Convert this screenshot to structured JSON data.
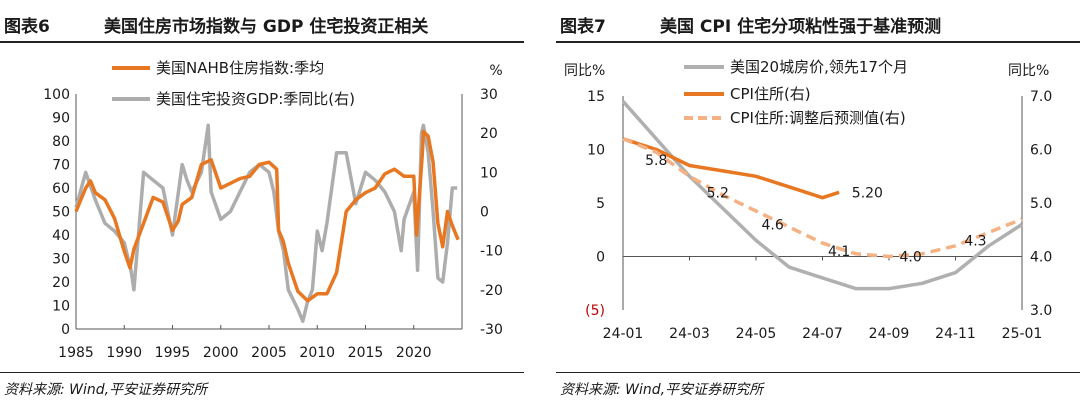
{
  "left": {
    "fig_label": "图表6",
    "title": "美国住房市场指数与 GDP 住宅投资正相关",
    "source": "资料来源: Wind,平安证券研究所"
  },
  "right": {
    "fig_label": "图表7",
    "title": "美国 CPI 住宅分项粘性强于基准预测",
    "source": "资料来源: Wind,平安证券研究所"
  },
  "chart_data": [
    {
      "type": "line",
      "title": "美国住房市场指数与 GDP 住宅投资正相关",
      "x_ticks": [
        "1985",
        "1990",
        "1995",
        "2000",
        "2005",
        "2010",
        "2015",
        "2020"
      ],
      "xlim": [
        1985,
        2025
      ],
      "y_left": {
        "label": "",
        "ticks": [
          "0",
          "10",
          "20",
          "30",
          "40",
          "50",
          "60",
          "70",
          "80",
          "90",
          "100"
        ],
        "lim": [
          0,
          100
        ]
      },
      "y_right": {
        "label": "%",
        "ticks": [
          "-30",
          "-20",
          "-10",
          "0",
          "10",
          "20",
          "30"
        ],
        "lim": [
          -30,
          30
        ]
      },
      "series": [
        {
          "name": "美国NAHB住房指数:季均",
          "axis": "left",
          "color": "#E87722",
          "x": [
            1985,
            1986,
            1986.5,
            1987,
            1988,
            1989,
            1990,
            1990.6,
            1991,
            1992,
            1993,
            1994,
            1995,
            1995.6,
            1996,
            1997,
            1998,
            1999,
            2000,
            2001,
            2002,
            2003,
            2004,
            2005,
            2005.8,
            2006,
            2006.5,
            2007,
            2008,
            2009,
            2010,
            2011,
            2012,
            2013,
            2014,
            2015,
            2016,
            2017,
            2018,
            2019,
            2020,
            2020.3,
            2020.9,
            2021,
            2021.5,
            2022,
            2022.5,
            2023,
            2023.5,
            2024,
            2024.6
          ],
          "y": [
            50,
            60,
            63,
            58,
            55,
            47,
            33,
            26,
            34,
            45,
            56,
            54,
            42,
            46,
            53,
            56,
            70,
            72,
            60,
            62,
            64,
            65,
            70,
            71,
            68,
            42,
            37,
            28,
            16,
            12,
            15,
            15,
            24,
            50,
            55,
            58,
            60,
            66,
            68,
            65,
            65,
            40,
            75,
            84,
            82,
            71,
            45,
            35,
            50,
            44,
            38
          ],
          "yunit": "index"
        },
        {
          "name": "美国住宅投资GDP:季同比(右)",
          "axis": "right",
          "color": "#ADADAD",
          "x": [
            1985,
            1986,
            1987,
            1988,
            1989,
            1990,
            1990.7,
            1991,
            1992,
            1993,
            1994,
            1995,
            1996,
            1996.5,
            1997,
            1998,
            1998.7,
            1999,
            2000,
            2001,
            2002,
            2003,
            2004,
            2005,
            2005.5,
            2006,
            2006.5,
            2007,
            2008,
            2008.5,
            2009,
            2009.5,
            2010,
            2010.5,
            2011,
            2012,
            2013,
            2014,
            2015,
            2016,
            2017,
            2018,
            2018.7,
            2019,
            2020,
            2020.4,
            2020.8,
            2021,
            2021.5,
            2022,
            2022.5,
            2023,
            2023.5,
            2024,
            2024.5
          ],
          "y": [
            1,
            10,
            3,
            -3,
            -5,
            -8,
            -15,
            -20,
            10,
            8,
            6,
            -6,
            12,
            8,
            5,
            10,
            22,
            5,
            -2,
            0,
            5,
            10,
            12,
            10,
            5,
            -5,
            -10,
            -20,
            -25,
            -28,
            -23,
            -20,
            -5,
            -10,
            -3,
            15,
            15,
            2,
            10,
            8,
            5,
            0,
            -10,
            -2,
            5,
            -15,
            20,
            22,
            15,
            0,
            -17,
            -18,
            -8,
            6,
            6
          ],
          "yunit": "%"
        }
      ]
    },
    {
      "type": "line",
      "title": "美国 CPI 住宅分项粘性强于基准预测",
      "x_ticks": [
        "24-01",
        "24-03",
        "24-05",
        "24-07",
        "24-09",
        "24-11",
        "25-01"
      ],
      "xlim": [
        "24-01",
        "25-01"
      ],
      "y_left": {
        "label": "同比%",
        "ticks": [
          "(5)",
          "0",
          "5",
          "10",
          "15"
        ],
        "lim": [
          -5,
          15
        ]
      },
      "y_right": {
        "label": "同比%",
        "ticks": [
          "3.0",
          "4.0",
          "5.0",
          "6.0",
          "7.0"
        ],
        "lim": [
          3.0,
          7.0
        ]
      },
      "series": [
        {
          "name": "美国20城房价,领先17个月",
          "axis": "left",
          "color": "#B0B0B0",
          "x": [
            0,
            1,
            2,
            3,
            4,
            5,
            6,
            7,
            8,
            9,
            10,
            11,
            12
          ],
          "y": [
            14.5,
            11.0,
            7.5,
            4.5,
            1.5,
            -1.0,
            -2.0,
            -3.0,
            -3.0,
            -2.5,
            -1.5,
            1.0,
            3.0
          ]
        },
        {
          "name": "CPI住所(右)",
          "axis": "right",
          "color": "#E87722",
          "x": [
            0,
            1,
            2,
            3,
            4,
            5,
            6,
            6.5
          ],
          "y": [
            6.2,
            6.0,
            5.7,
            5.6,
            5.5,
            5.3,
            5.1,
            5.2
          ]
        },
        {
          "name": "CPI住所:调整后预测值(右)",
          "axis": "right",
          "color": "#F4B183",
          "x": [
            0,
            1,
            2,
            3,
            4,
            5,
            6,
            7,
            8,
            9,
            10,
            11,
            12
          ],
          "y": [
            6.2,
            5.95,
            5.5,
            5.15,
            4.85,
            4.55,
            4.25,
            4.05,
            4.0,
            4.05,
            4.2,
            4.45,
            4.7
          ]
        }
      ],
      "annotations": [
        {
          "x": 1,
          "y": 5.8,
          "text": "5.8"
        },
        {
          "x": 2.85,
          "y": 5.2,
          "text": "5.2"
        },
        {
          "x": 4.5,
          "y": 4.6,
          "text": "4.6"
        },
        {
          "x": 6.5,
          "y": 4.1,
          "text": "4.1"
        },
        {
          "x": 8.65,
          "y": 4.0,
          "text": "4.0"
        },
        {
          "x": 10.6,
          "y": 4.3,
          "text": "4.3"
        },
        {
          "x": 7.35,
          "y": 5.2,
          "text": "5.20"
        }
      ]
    }
  ]
}
